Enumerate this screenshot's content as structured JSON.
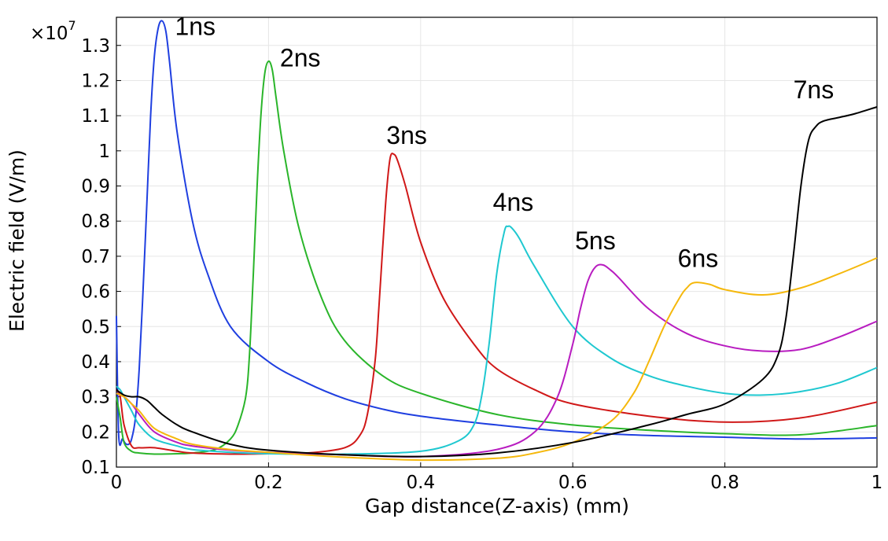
{
  "chart_data": {
    "type": "line",
    "xlabel": "Gap distance(Z-axis) (mm)",
    "ylabel": "Electric field (V/m)",
    "y_multiplier_base": "×10",
    "y_multiplier_exp": "7",
    "xlim": [
      0,
      1
    ],
    "ylim": [
      0.1,
      1.38
    ],
    "xticks": [
      0,
      0.2,
      0.4,
      0.6,
      0.8,
      1
    ],
    "xtick_labels": [
      "0",
      "0.2",
      "0.4",
      "0.6",
      "0.8",
      "1"
    ],
    "yticks": [
      0.1,
      0.2,
      0.3,
      0.4,
      0.5,
      0.6,
      0.7,
      0.8,
      0.9,
      1,
      1.1,
      1.2,
      1.3
    ],
    "ytick_labels": [
      "0.1",
      "0.2",
      "0.3",
      "0.4",
      "0.5",
      "0.6",
      "0.7",
      "0.8",
      "0.9",
      "1",
      "1.1",
      "1.2",
      "1.3"
    ],
    "grid": true,
    "series": [
      {
        "name": "1ns",
        "color": "#1f3fe0",
        "x": [
          0,
          0.003,
          0.008,
          0.012,
          0.016,
          0.02,
          0.025,
          0.03,
          0.035,
          0.04,
          0.045,
          0.05,
          0.055,
          0.06,
          0.065,
          0.07,
          0.08,
          0.1,
          0.12,
          0.15,
          0.2,
          0.25,
          0.3,
          0.35,
          0.4,
          0.5,
          0.6,
          0.7,
          0.8,
          0.9,
          1.0
        ],
        "y": [
          0.53,
          0.19,
          0.18,
          0.167,
          0.165,
          0.18,
          0.24,
          0.38,
          0.6,
          0.85,
          1.1,
          1.27,
          1.35,
          1.37,
          1.34,
          1.25,
          1.05,
          0.8,
          0.65,
          0.5,
          0.4,
          0.34,
          0.295,
          0.265,
          0.245,
          0.22,
          0.2,
          0.19,
          0.185,
          0.18,
          0.183
        ]
      },
      {
        "name": "2ns",
        "color": "#2ab52a",
        "x": [
          0,
          0.005,
          0.01,
          0.02,
          0.03,
          0.05,
          0.08,
          0.1,
          0.13,
          0.15,
          0.16,
          0.17,
          0.175,
          0.18,
          0.185,
          0.19,
          0.195,
          0.2,
          0.205,
          0.21,
          0.22,
          0.24,
          0.27,
          0.3,
          0.35,
          0.4,
          0.5,
          0.6,
          0.7,
          0.8,
          0.9,
          1.0
        ],
        "y": [
          0.3,
          0.24,
          0.17,
          0.145,
          0.14,
          0.137,
          0.138,
          0.14,
          0.15,
          0.18,
          0.22,
          0.3,
          0.42,
          0.65,
          0.9,
          1.1,
          1.22,
          1.255,
          1.23,
          1.15,
          1.0,
          0.78,
          0.58,
          0.46,
          0.36,
          0.31,
          0.25,
          0.22,
          0.205,
          0.195,
          0.192,
          0.218
        ]
      },
      {
        "name": "3ns",
        "color": "#d01818",
        "x": [
          0,
          0.005,
          0.01,
          0.02,
          0.03,
          0.05,
          0.08,
          0.1,
          0.15,
          0.2,
          0.25,
          0.3,
          0.32,
          0.33,
          0.34,
          0.345,
          0.35,
          0.355,
          0.36,
          0.365,
          0.37,
          0.38,
          0.4,
          0.43,
          0.47,
          0.5,
          0.55,
          0.6,
          0.7,
          0.8,
          0.9,
          1.0
        ],
        "y": [
          0.32,
          0.3,
          0.22,
          0.16,
          0.155,
          0.155,
          0.145,
          0.14,
          0.137,
          0.138,
          0.14,
          0.155,
          0.19,
          0.25,
          0.4,
          0.55,
          0.72,
          0.88,
          0.98,
          0.99,
          0.97,
          0.9,
          0.74,
          0.58,
          0.45,
          0.38,
          0.32,
          0.28,
          0.245,
          0.228,
          0.24,
          0.285
        ]
      },
      {
        "name": "4ns",
        "color": "#1fc8d0",
        "x": [
          0,
          0.005,
          0.01,
          0.02,
          0.03,
          0.05,
          0.08,
          0.1,
          0.15,
          0.2,
          0.3,
          0.4,
          0.45,
          0.47,
          0.48,
          0.49,
          0.5,
          0.51,
          0.515,
          0.52,
          0.53,
          0.55,
          0.6,
          0.65,
          0.7,
          0.75,
          0.8,
          0.85,
          0.9,
          0.95,
          1.0
        ],
        "y": [
          0.33,
          0.32,
          0.3,
          0.26,
          0.22,
          0.18,
          0.16,
          0.15,
          0.142,
          0.138,
          0.137,
          0.145,
          0.175,
          0.22,
          0.3,
          0.45,
          0.65,
          0.77,
          0.785,
          0.78,
          0.75,
          0.67,
          0.5,
          0.41,
          0.36,
          0.33,
          0.31,
          0.305,
          0.315,
          0.34,
          0.383
        ]
      },
      {
        "name": "5ns",
        "color": "#b81cc0",
        "x": [
          0,
          0.01,
          0.02,
          0.03,
          0.05,
          0.08,
          0.1,
          0.15,
          0.2,
          0.3,
          0.4,
          0.5,
          0.55,
          0.58,
          0.6,
          0.61,
          0.62,
          0.63,
          0.64,
          0.65,
          0.66,
          0.7,
          0.75,
          0.8,
          0.85,
          0.9,
          0.95,
          1.0
        ],
        "y": [
          0.31,
          0.3,
          0.28,
          0.25,
          0.2,
          0.17,
          0.16,
          0.148,
          0.142,
          0.135,
          0.13,
          0.15,
          0.2,
          0.3,
          0.45,
          0.55,
          0.63,
          0.67,
          0.675,
          0.66,
          0.64,
          0.55,
          0.48,
          0.445,
          0.43,
          0.435,
          0.47,
          0.515
        ]
      },
      {
        "name": "6ns",
        "color": "#f5b80c",
        "x": [
          0,
          0.01,
          0.02,
          0.03,
          0.05,
          0.08,
          0.1,
          0.15,
          0.2,
          0.3,
          0.4,
          0.5,
          0.55,
          0.6,
          0.65,
          0.68,
          0.7,
          0.72,
          0.74,
          0.75,
          0.76,
          0.78,
          0.8,
          0.85,
          0.9,
          0.95,
          1.0
        ],
        "y": [
          0.31,
          0.3,
          0.28,
          0.26,
          0.21,
          0.18,
          0.165,
          0.15,
          0.142,
          0.128,
          0.12,
          0.125,
          0.14,
          0.17,
          0.23,
          0.31,
          0.4,
          0.5,
          0.58,
          0.61,
          0.625,
          0.62,
          0.605,
          0.59,
          0.61,
          0.65,
          0.695
        ]
      },
      {
        "name": "7ns",
        "color": "#000000",
        "x": [
          0,
          0.01,
          0.02,
          0.03,
          0.04,
          0.05,
          0.06,
          0.08,
          0.1,
          0.15,
          0.2,
          0.3,
          0.4,
          0.5,
          0.6,
          0.7,
          0.75,
          0.8,
          0.85,
          0.87,
          0.88,
          0.89,
          0.9,
          0.91,
          0.92,
          0.93,
          0.95,
          0.97,
          1.0
        ],
        "y": [
          0.32,
          0.305,
          0.3,
          0.3,
          0.29,
          0.27,
          0.25,
          0.22,
          0.2,
          0.165,
          0.148,
          0.135,
          0.13,
          0.14,
          0.17,
          0.22,
          0.25,
          0.28,
          0.35,
          0.42,
          0.52,
          0.7,
          0.9,
          1.03,
          1.07,
          1.085,
          1.095,
          1.105,
          1.125
        ]
      }
    ],
    "annotations": [
      {
        "text": "1ns",
        "x": 0.077,
        "y": 1.33
      },
      {
        "text": "2ns",
        "x": 0.215,
        "y": 1.24
      },
      {
        "text": "3ns",
        "x": 0.355,
        "y": 1.02
      },
      {
        "text": "4ns",
        "x": 0.495,
        "y": 0.83
      },
      {
        "text": "5ns",
        "x": 0.603,
        "y": 0.72
      },
      {
        "text": "6ns",
        "x": 0.738,
        "y": 0.67
      },
      {
        "text": "7ns",
        "x": 0.89,
        "y": 1.15
      }
    ]
  }
}
